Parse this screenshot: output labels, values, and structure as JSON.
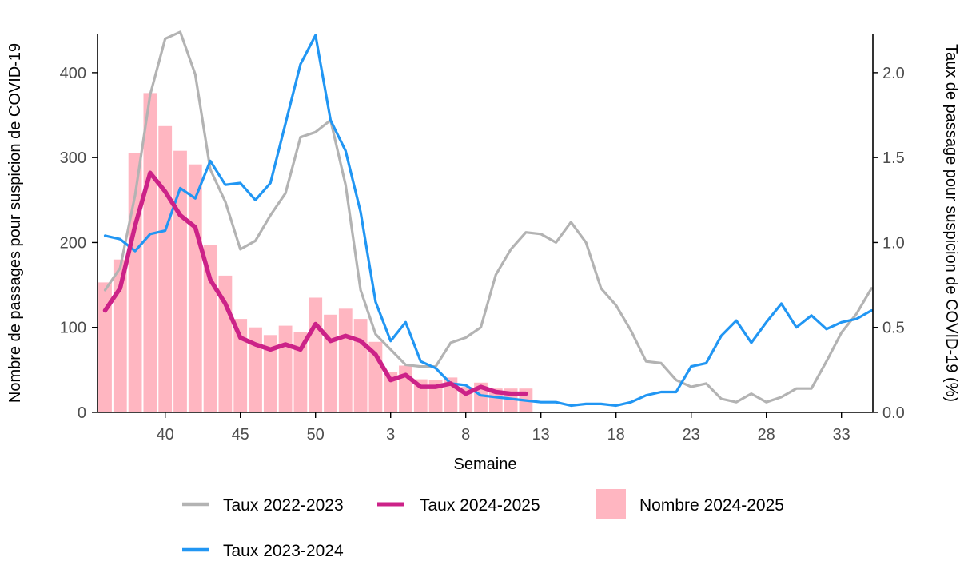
{
  "chart_data": {
    "type": "bar+line",
    "xlabel": "Semaine",
    "ylabel_left": "Nombre de passages pour suspicion de COVID-19",
    "ylabel_right": "Taux de passage pour suspicion de COVID-19 (%)",
    "x_ticks": [
      "40",
      "45",
      "50",
      "3",
      "8",
      "13",
      "18",
      "23",
      "28",
      "33"
    ],
    "y_left_ticks": [
      "0",
      "100",
      "200",
      "300",
      "400"
    ],
    "y_right_ticks": [
      "0.0",
      "0.5",
      "1.0",
      "1.5",
      "2.0"
    ],
    "ylim_left": [
      0,
      446
    ],
    "ylim_right": [
      0,
      2.23
    ],
    "weeks": [
      "36",
      "37",
      "38",
      "39",
      "40",
      "41",
      "42",
      "43",
      "44",
      "45",
      "46",
      "47",
      "48",
      "49",
      "50",
      "51",
      "52",
      "1",
      "2",
      "3",
      "4",
      "5",
      "6",
      "7",
      "8",
      "9",
      "10",
      "11",
      "12",
      "13",
      "14",
      "15",
      "16",
      "17",
      "18",
      "19",
      "20",
      "21",
      "22",
      "23",
      "24",
      "25",
      "26",
      "27",
      "28",
      "29",
      "30",
      "31",
      "32",
      "33",
      "34",
      "35"
    ],
    "legend": [
      {
        "key": "taux_2022_2023",
        "label": "Taux 2022-2023",
        "kind": "line"
      },
      {
        "key": "taux_2024_2025",
        "label": "Taux 2024-2025",
        "kind": "line"
      },
      {
        "key": "nombre_2024_2025",
        "label": "Nombre 2024-2025",
        "kind": "bar"
      },
      {
        "key": "taux_2023_2024",
        "label": "Taux 2023-2024",
        "kind": "line"
      }
    ],
    "colors": {
      "taux_2022_2023": "#b3b3b3",
      "taux_2023_2024": "#2196f3",
      "taux_2024_2025": "#cc2288",
      "nombre_2024_2025": "#ffb6c1",
      "axis": "#000000"
    },
    "series": [
      {
        "key": "nombre_2024_2025",
        "axis": "left",
        "values": [
          153,
          180,
          305,
          376,
          337,
          308,
          292,
          197,
          161,
          110,
          100,
          91,
          102,
          95,
          135,
          115,
          122,
          110,
          83,
          48,
          55,
          39,
          38,
          41,
          30,
          35,
          28,
          28,
          28
        ]
      },
      {
        "key": "taux_2022_2023",
        "axis": "right",
        "values": [
          0.72,
          0.85,
          1.28,
          1.87,
          2.2,
          2.24,
          1.99,
          1.43,
          1.24,
          0.96,
          1.01,
          1.16,
          1.29,
          1.62,
          1.65,
          1.72,
          1.34,
          0.72,
          0.46,
          0.37,
          0.28,
          0.27,
          0.27,
          0.41,
          0.44,
          0.5,
          0.81,
          0.96,
          1.06,
          1.05,
          1.0,
          1.12,
          1.0,
          0.73,
          0.63,
          0.48,
          0.3,
          0.29,
          0.19,
          0.15,
          0.17,
          0.08,
          0.06,
          0.11,
          0.06,
          0.09,
          0.14,
          0.14,
          0.3,
          0.47,
          0.58,
          0.73
        ]
      },
      {
        "key": "taux_2023_2024",
        "axis": "right",
        "values": [
          1.04,
          1.02,
          0.95,
          1.05,
          1.07,
          1.32,
          1.26,
          1.48,
          1.34,
          1.35,
          1.25,
          1.35,
          1.7,
          2.05,
          2.22,
          1.72,
          1.54,
          1.18,
          0.65,
          0.42,
          0.53,
          0.3,
          0.26,
          0.17,
          0.16,
          0.1,
          0.09,
          0.08,
          0.07,
          0.06,
          0.06,
          0.04,
          0.05,
          0.05,
          0.04,
          0.06,
          0.1,
          0.12,
          0.12,
          0.27,
          0.29,
          0.45,
          0.54,
          0.41,
          0.53,
          0.64,
          0.5,
          0.57,
          0.49,
          0.53,
          0.55,
          0.6
        ]
      },
      {
        "key": "taux_2024_2025",
        "axis": "right",
        "values": [
          0.6,
          0.73,
          1.1,
          1.41,
          1.3,
          1.16,
          1.09,
          0.78,
          0.64,
          0.44,
          0.4,
          0.37,
          0.4,
          0.37,
          0.52,
          0.42,
          0.45,
          0.42,
          0.34,
          0.19,
          0.22,
          0.15,
          0.15,
          0.17,
          0.11,
          0.15,
          0.12,
          0.11,
          0.11
        ]
      }
    ],
    "grid": false,
    "legend_position": "bottom"
  }
}
